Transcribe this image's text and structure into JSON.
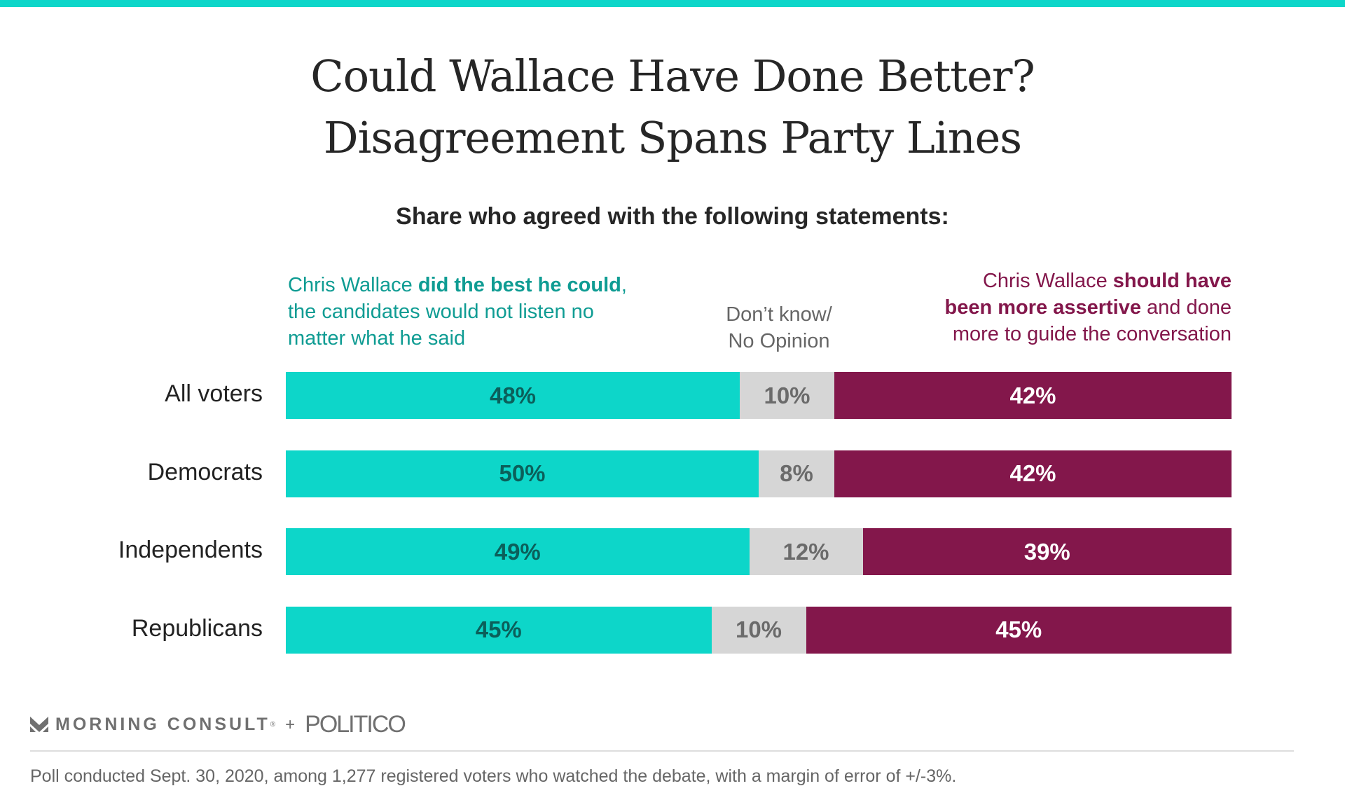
{
  "colors": {
    "agree": "#0dd6c9",
    "agree_text": "#0f9c93",
    "agree_label": "#0b5f5a",
    "neutral": "#d6d6d6",
    "neutral_text": "#6b6b6b",
    "assertive": "#83174b",
    "assertive_label": "#ffffff",
    "topbar": "#0dd6c9"
  },
  "chart_data": {
    "type": "bar",
    "orientation": "horizontal-stacked-100",
    "title": "Could Wallace Have Done Better? Disagreement Spans Party Lines",
    "title_lines": [
      "Could Wallace Have Done Better?",
      "Disagreement Spans Party Lines"
    ],
    "subtitle": "Share who agreed with the following statements:",
    "categories": [
      "All voters",
      "Democrats",
      "Independents",
      "Republicans"
    ],
    "series": [
      {
        "name": "Chris Wallace did the best he could, the candidates would not listen no matter what he said",
        "values": [
          48,
          50,
          49,
          45
        ]
      },
      {
        "name": "Don’t know/ No Opinion",
        "values": [
          10,
          8,
          12,
          10
        ]
      },
      {
        "name": "Chris Wallace should have been more assertive and done more to guide the conversation",
        "values": [
          42,
          42,
          39,
          45
        ]
      }
    ],
    "xlim": [
      0,
      100
    ],
    "legend": {
      "left": {
        "pre": "Chris Wallace ",
        "bold": "did the best he could",
        "post": ",",
        "line2": "the candidates would not listen no",
        "line3": "matter what he said"
      },
      "mid": {
        "line1": "Don’t know/",
        "line2": "No Opinion"
      },
      "right": {
        "pre": "Chris Wallace ",
        "bold1": "should have",
        "bold2": "been more assertive",
        "post2": " and done",
        "line3": "more to guide the conversation"
      }
    }
  },
  "branding": {
    "morning_consult": "MORNING CONSULT",
    "registered": "®",
    "plus": "+",
    "politico": "POLITICO"
  },
  "footer": "Poll conducted Sept. 30, 2020, among 1,277 registered voters who watched the debate, with a margin of error of +/-3%."
}
